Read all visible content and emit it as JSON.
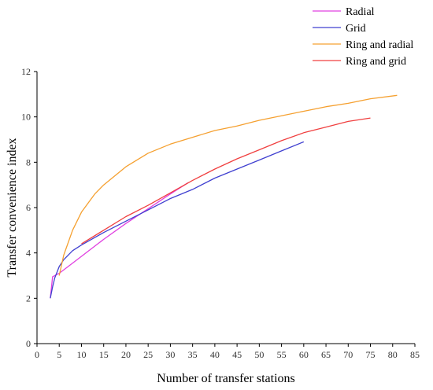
{
  "chart_data": {
    "type": "line",
    "title": "",
    "xlabel": "Number of transfer stations",
    "ylabel": "Transfer convenience index",
    "xlim": [
      0,
      85
    ],
    "ylim": [
      0,
      12
    ],
    "x_ticks": [
      0,
      5,
      10,
      15,
      20,
      25,
      30,
      35,
      40,
      45,
      50,
      55,
      60,
      65,
      70,
      75,
      80,
      85
    ],
    "y_ticks": [
      0,
      2,
      4,
      6,
      8,
      10,
      12
    ],
    "grid": false,
    "legend_position": "top-right",
    "series": [
      {
        "name": "Radial",
        "color": "#e040e0",
        "x": [
          3,
          3.5,
          5,
          7,
          10,
          15,
          20,
          25,
          30,
          34
        ],
        "y": [
          2.0,
          2.95,
          3.1,
          3.4,
          3.85,
          4.6,
          5.3,
          5.95,
          6.6,
          7.1
        ]
      },
      {
        "name": "Grid",
        "color": "#4040d0",
        "x": [
          3,
          3.5,
          4,
          5,
          6,
          8,
          10,
          15,
          20,
          25,
          30,
          35,
          40,
          45,
          50,
          55,
          60
        ],
        "y": [
          2.0,
          2.5,
          2.9,
          3.4,
          3.7,
          4.1,
          4.35,
          4.9,
          5.4,
          5.9,
          6.4,
          6.8,
          7.3,
          7.7,
          8.1,
          8.5,
          8.9
        ]
      },
      {
        "name": "Ring and radial",
        "color": "#f5a030",
        "x": [
          5,
          6,
          8,
          10,
          13,
          15,
          20,
          25,
          30,
          35,
          40,
          45,
          50,
          55,
          60,
          65,
          70,
          75,
          81
        ],
        "y": [
          3.0,
          3.9,
          5.0,
          5.8,
          6.6,
          7.0,
          7.8,
          8.4,
          8.8,
          9.1,
          9.4,
          9.6,
          9.85,
          10.05,
          10.25,
          10.45,
          10.6,
          10.8,
          10.95
        ]
      },
      {
        "name": "Ring and grid",
        "color": "#f04040",
        "x": [
          10,
          15,
          20,
          25,
          30,
          35,
          40,
          45,
          50,
          55,
          60,
          65,
          70,
          75
        ],
        "y": [
          4.4,
          5.0,
          5.6,
          6.1,
          6.65,
          7.2,
          7.7,
          8.15,
          8.55,
          8.95,
          9.3,
          9.55,
          9.8,
          9.95
        ]
      }
    ]
  }
}
